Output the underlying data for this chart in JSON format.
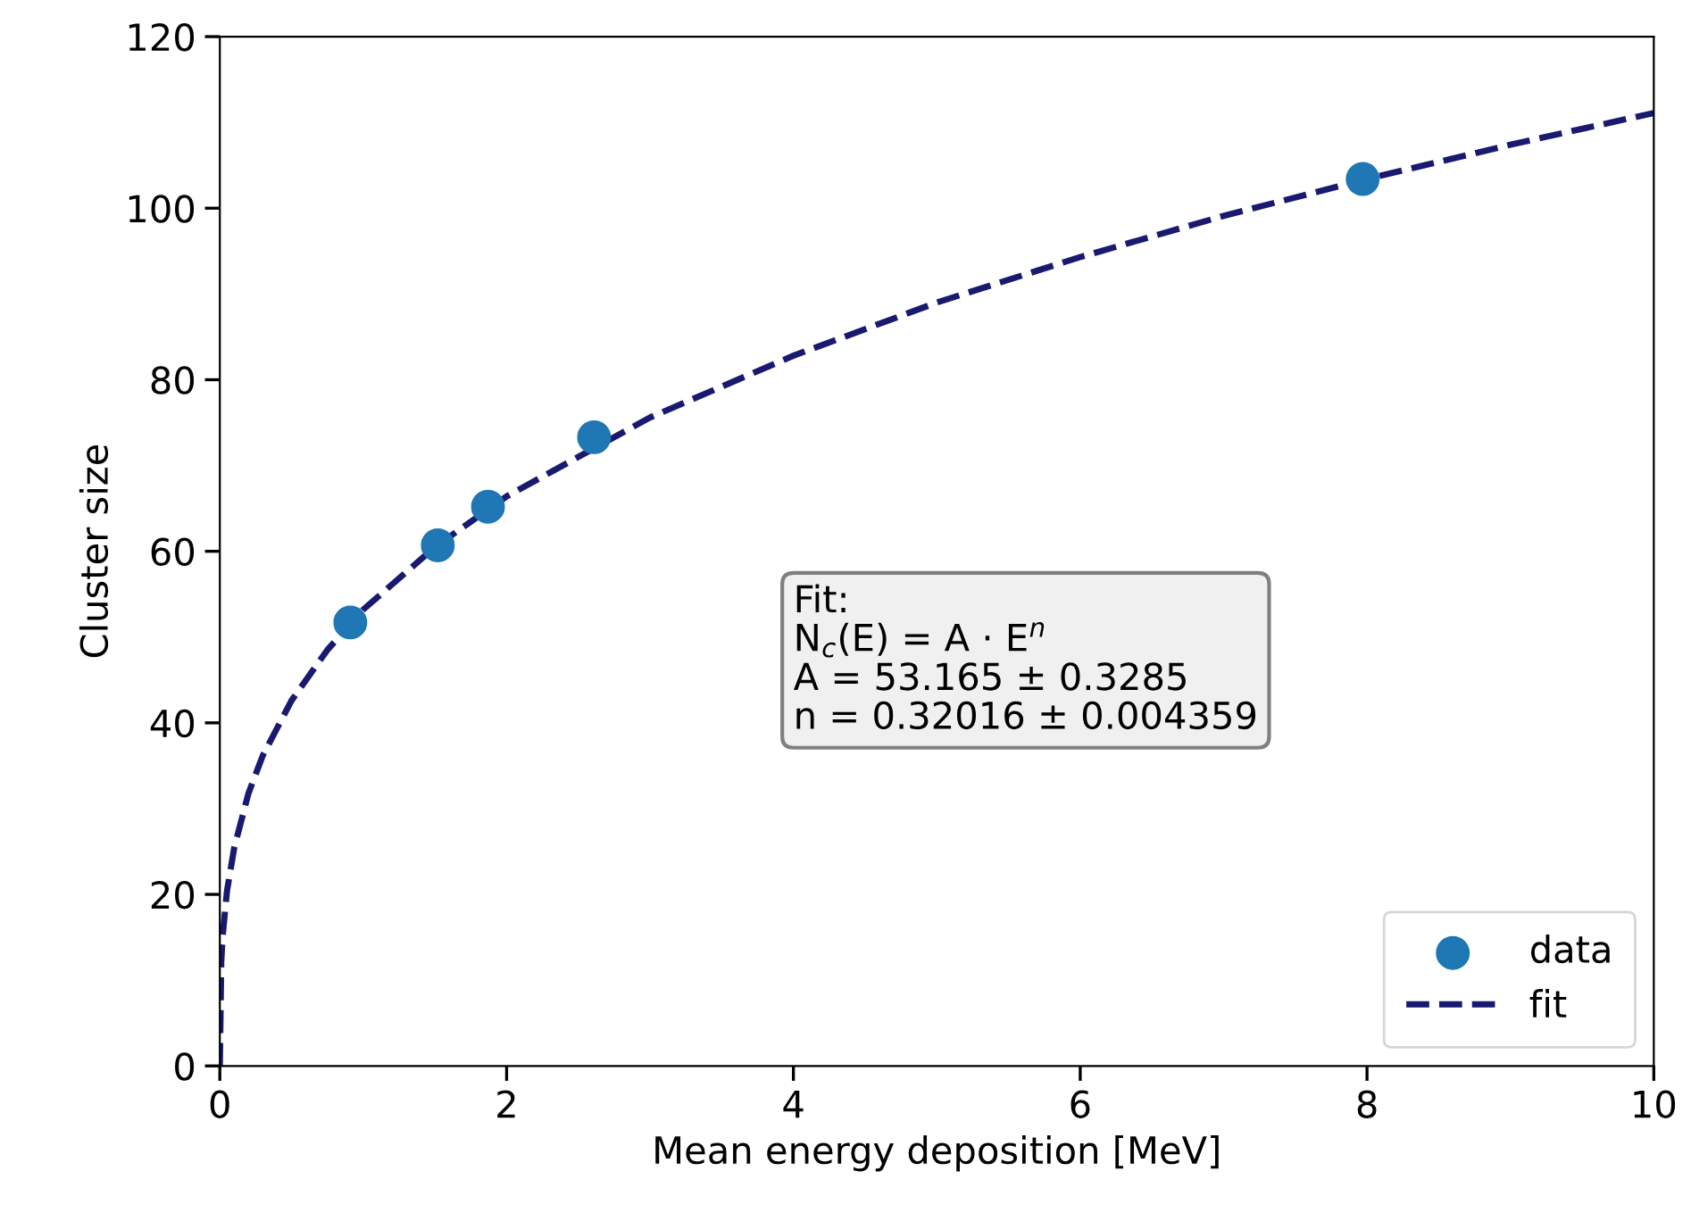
{
  "chart_data": {
    "type": "scatter",
    "xlabel": "Mean energy deposition [MeV]",
    "ylabel": "Cluster size",
    "xlim": [
      0,
      10
    ],
    "ylim": [
      0,
      120
    ],
    "xticks": [
      0,
      2,
      4,
      6,
      8,
      10
    ],
    "yticks": [
      0,
      20,
      40,
      60,
      80,
      100,
      120
    ],
    "grid": false,
    "legend": "bottom right",
    "series": [
      {
        "name": "data",
        "marker": "circle",
        "color": "#1f77b4",
        "x": [
          0.91,
          1.52,
          1.87,
          2.61,
          7.97
        ],
        "values": [
          51.7,
          60.7,
          65.2,
          73.3,
          103.4
        ]
      },
      {
        "name": "fit",
        "type": "line",
        "line_style": "dashed",
        "color": "#191970",
        "x": [
          0,
          0.01,
          0.02,
          0.05,
          0.1,
          0.2,
          0.3,
          0.5,
          0.75,
          1,
          1.5,
          2,
          3,
          4,
          5,
          6,
          7,
          8,
          9,
          10
        ],
        "values": [
          0,
          12.2,
          15.2,
          20.4,
          25.4,
          31.8,
          36.2,
          42.6,
          48.5,
          53.2,
          60.5,
          66.4,
          75.6,
          82.8,
          89.0,
          94.3,
          99.1,
          103.4,
          107.4,
          111.1
        ]
      }
    ],
    "annotations": [
      "Fit:\nN$_{c}$(E) = A · E$^{n}$\nA = 53.165 ± 0.3285\nn = 0.32016 ± 0.004359"
    ]
  }
}
